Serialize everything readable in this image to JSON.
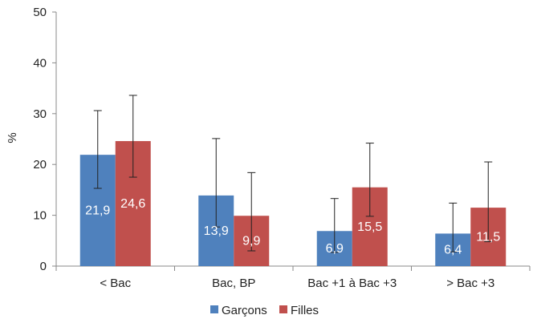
{
  "chart_data": {
    "type": "bar",
    "title": "",
    "xlabel": "",
    "ylabel": "%",
    "ylim": [
      0,
      50
    ],
    "yticks": [
      0,
      10,
      20,
      30,
      40,
      50
    ],
    "grid": false,
    "legend_position": "bottom",
    "categories": [
      "< Bac",
      "Bac, BP",
      "Bac +1 à Bac +3",
      "> Bac +3"
    ],
    "series": [
      {
        "name": "Garçons",
        "color": "#4f81bd",
        "values": [
          21.9,
          13.9,
          6.9,
          6.4
        ],
        "labels": [
          "21,9",
          "13,9",
          "6,9",
          "6,4"
        ],
        "error_low": [
          15.3,
          7.7,
          2.7,
          2.8
        ],
        "error_high": [
          30.6,
          25.1,
          13.3,
          12.4
        ]
      },
      {
        "name": "Filles",
        "color": "#c0504d",
        "values": [
          24.6,
          9.9,
          15.5,
          11.5
        ],
        "labels": [
          "24,6",
          "9,9",
          "15,5",
          "11,5"
        ],
        "error_low": [
          17.5,
          3.0,
          9.8,
          4.8
        ],
        "error_high": [
          33.6,
          18.4,
          24.2,
          20.5
        ]
      }
    ]
  }
}
